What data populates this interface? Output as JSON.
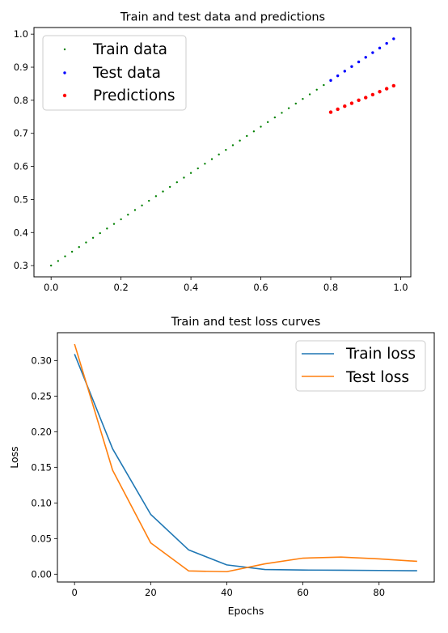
{
  "chart_data": [
    {
      "type": "scatter",
      "title": "Train and test data and predictions",
      "xlabel": "",
      "ylabel": "",
      "xlim": [
        -0.049,
        1.029
      ],
      "ylim": [
        0.266,
        1.02
      ],
      "xticks": [
        0.0,
        0.2,
        0.4,
        0.6,
        0.8,
        1.0
      ],
      "xtick_labels": [
        "0.0",
        "0.2",
        "0.4",
        "0.6",
        "0.8",
        "1.0"
      ],
      "yticks": [
        0.3,
        0.4,
        0.5,
        0.6,
        0.7,
        0.8,
        0.9,
        1.0
      ],
      "ytick_labels": [
        "0.3",
        "0.4",
        "0.5",
        "0.6",
        "0.7",
        "0.8",
        "0.9",
        "1.0"
      ],
      "grid": false,
      "legend_position": "top-left",
      "series": [
        {
          "name": "Train data",
          "color": "#008000",
          "marker_size": 1.2,
          "x": [
            0.0,
            0.02,
            0.04,
            0.06,
            0.08,
            0.1,
            0.12,
            0.14,
            0.16,
            0.18,
            0.2,
            0.22,
            0.24,
            0.26,
            0.28,
            0.3,
            0.32,
            0.34,
            0.36,
            0.38,
            0.4,
            0.42,
            0.44,
            0.46,
            0.48,
            0.5,
            0.52,
            0.54,
            0.56,
            0.58,
            0.6,
            0.62,
            0.64,
            0.66,
            0.68,
            0.7,
            0.72,
            0.74,
            0.76,
            0.78
          ],
          "y": [
            0.3,
            0.314,
            0.328,
            0.342,
            0.356,
            0.37,
            0.384,
            0.398,
            0.412,
            0.426,
            0.44,
            0.454,
            0.468,
            0.482,
            0.496,
            0.51,
            0.524,
            0.538,
            0.552,
            0.566,
            0.58,
            0.594,
            0.608,
            0.622,
            0.636,
            0.65,
            0.664,
            0.678,
            0.692,
            0.706,
            0.72,
            0.734,
            0.748,
            0.762,
            0.776,
            0.79,
            0.804,
            0.818,
            0.832,
            0.846
          ]
        },
        {
          "name": "Test data",
          "color": "#0000ff",
          "marker_size": 1.7,
          "x": [
            0.8,
            0.82,
            0.84,
            0.86,
            0.88,
            0.9,
            0.92,
            0.94,
            0.96,
            0.98
          ],
          "y": [
            0.86,
            0.874,
            0.888,
            0.902,
            0.916,
            0.93,
            0.944,
            0.958,
            0.972,
            0.986
          ]
        },
        {
          "name": "Predictions",
          "color": "#ff0000",
          "marker_size": 2.2,
          "x": [
            0.8,
            0.82,
            0.84,
            0.86,
            0.88,
            0.9,
            0.92,
            0.94,
            0.96,
            0.98
          ],
          "y": [
            0.764,
            0.773,
            0.782,
            0.791,
            0.8,
            0.808,
            0.817,
            0.826,
            0.835,
            0.844
          ]
        }
      ]
    },
    {
      "type": "line",
      "title": "Train and test loss curves",
      "xlabel": "Epochs",
      "ylabel": "Loss",
      "xlim": [
        -4.5,
        94.5
      ],
      "ylim": [
        -0.011,
        0.339
      ],
      "xticks": [
        0,
        20,
        40,
        60,
        80
      ],
      "xtick_labels": [
        "0",
        "20",
        "40",
        "60",
        "80"
      ],
      "yticks": [
        0.0,
        0.05,
        0.1,
        0.15,
        0.2,
        0.25,
        0.3
      ],
      "ytick_labels": [
        "0.00",
        "0.05",
        "0.10",
        "0.15",
        "0.20",
        "0.25",
        "0.30"
      ],
      "grid": false,
      "legend_position": "top-right",
      "x": [
        0,
        10,
        20,
        30,
        40,
        50,
        60,
        70,
        80,
        90
      ],
      "series": [
        {
          "name": "Train loss",
          "color": "#1f77b4",
          "values": [
            0.309,
            0.176,
            0.084,
            0.034,
            0.013,
            0.0065,
            0.0058,
            0.0055,
            0.0052,
            0.0048
          ]
        },
        {
          "name": "Test loss",
          "color": "#ff7f0e",
          "values": [
            0.323,
            0.146,
            0.044,
            0.0045,
            0.0035,
            0.0145,
            0.0225,
            0.024,
            0.0215,
            0.018
          ]
        }
      ]
    }
  ]
}
